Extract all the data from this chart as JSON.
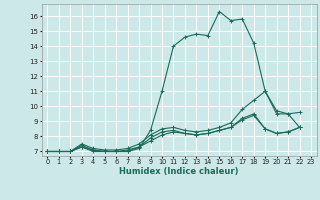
{
  "xlabel": "Humidex (Indice chaleur)",
  "bg_color": "#cce8e8",
  "grid_color": "#ffffff",
  "line_color": "#1a6b5a",
  "xlim": [
    -0.5,
    23.5
  ],
  "ylim": [
    6.7,
    16.8
  ],
  "xticks": [
    0,
    1,
    2,
    3,
    4,
    5,
    6,
    7,
    8,
    9,
    10,
    11,
    12,
    13,
    14,
    15,
    16,
    17,
    18,
    19,
    20,
    21,
    22,
    23
  ],
  "yticks": [
    7,
    8,
    9,
    10,
    11,
    12,
    13,
    14,
    15,
    16
  ],
  "series": [
    {
      "x": [
        0,
        1,
        2,
        3,
        4,
        5,
        6,
        7,
        8,
        9,
        10,
        11,
        12,
        13,
        14,
        15,
        16,
        17,
        18,
        19,
        20,
        21,
        22
      ],
      "y": [
        7.0,
        7.0,
        7.0,
        7.3,
        7.1,
        7.0,
        7.0,
        7.0,
        7.2,
        8.4,
        11.0,
        14.0,
        14.6,
        14.8,
        14.7,
        16.3,
        15.7,
        15.8,
        14.2,
        11.0,
        9.5,
        9.5,
        9.6
      ]
    },
    {
      "x": [
        0,
        1,
        2,
        3,
        4,
        5,
        6,
        7,
        8,
        9,
        10,
        11,
        12,
        13,
        14,
        15,
        16,
        17,
        18,
        19,
        20,
        21,
        22
      ],
      "y": [
        7.0,
        7.0,
        7.0,
        7.5,
        7.2,
        7.1,
        7.1,
        7.2,
        7.5,
        8.1,
        8.5,
        8.6,
        8.4,
        8.3,
        8.4,
        8.6,
        8.9,
        9.8,
        10.4,
        11.0,
        9.7,
        9.5,
        8.6
      ]
    },
    {
      "x": [
        0,
        1,
        2,
        3,
        4,
        5,
        6,
        7,
        8,
        9,
        10,
        11,
        12,
        13,
        14,
        15,
        16,
        17,
        18,
        19,
        20,
        21,
        22
      ],
      "y": [
        7.0,
        7.0,
        7.0,
        7.4,
        7.1,
        7.0,
        7.0,
        7.1,
        7.3,
        7.9,
        8.3,
        8.4,
        8.2,
        8.1,
        8.2,
        8.4,
        8.6,
        9.1,
        9.4,
        8.5,
        8.2,
        8.3,
        8.6
      ]
    },
    {
      "x": [
        0,
        1,
        2,
        3,
        4,
        5,
        6,
        7,
        8,
        9,
        10,
        11,
        12,
        13,
        14,
        15,
        16,
        17,
        18,
        19,
        20,
        21,
        22
      ],
      "y": [
        7.0,
        7.0,
        7.0,
        7.3,
        7.0,
        7.0,
        7.0,
        7.0,
        7.3,
        7.7,
        8.1,
        8.3,
        8.2,
        8.1,
        8.2,
        8.4,
        8.6,
        9.2,
        9.5,
        8.5,
        8.2,
        8.3,
        8.6
      ]
    }
  ],
  "xlabel_fontsize": 6,
  "tick_fontsize": 4.8
}
